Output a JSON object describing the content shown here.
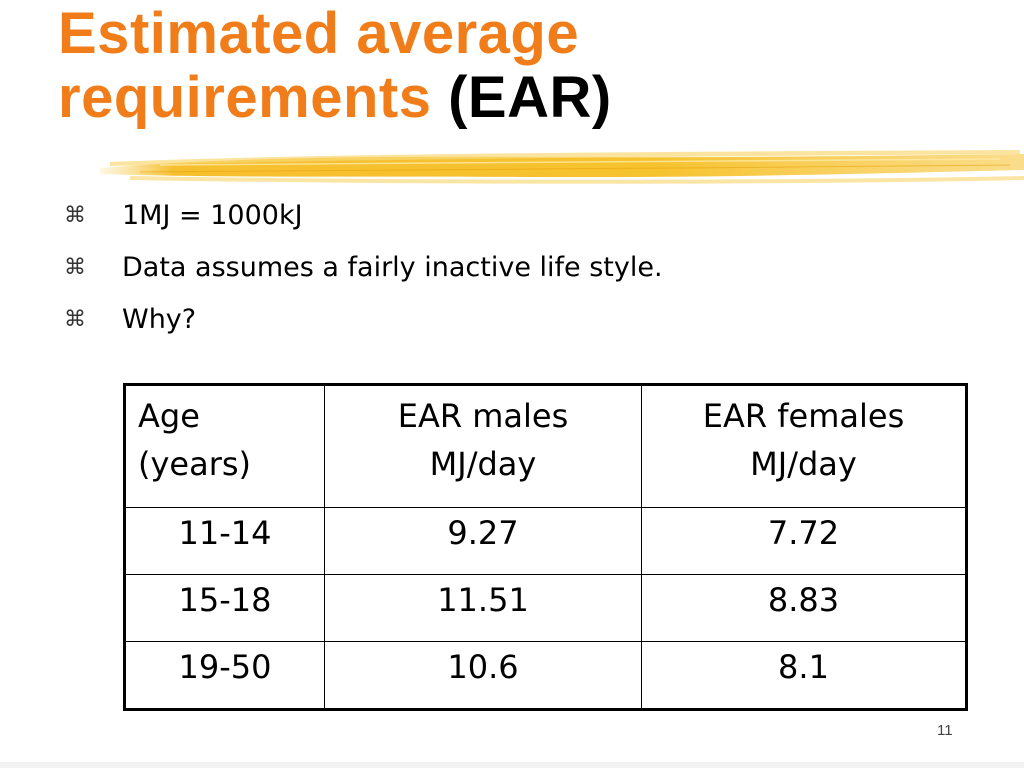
{
  "title": {
    "line1": "Estimated average",
    "line2": "requirements",
    "suffix": "(EAR)",
    "accent_color": "#f07d1a"
  },
  "bullets": [
    {
      "icon": "command-key-icon",
      "glyph": "⌘",
      "text": "1MJ = 1000kJ"
    },
    {
      "icon": "command-key-icon",
      "glyph": "⌘",
      "text": "Data assumes a fairly inactive life style."
    },
    {
      "icon": "command-key-icon",
      "glyph": "⌘",
      "text": "Why?"
    }
  ],
  "table": {
    "headers": {
      "age_line1": "Age",
      "age_line2": "(years)",
      "males_line1": "EAR males",
      "males_line2": "MJ/day",
      "females_line1": "EAR females",
      "females_line2": "MJ/day"
    },
    "rows": [
      {
        "age": "11-14",
        "males": "9.27",
        "females": "7.72"
      },
      {
        "age": "15-18",
        "males": "11.51",
        "females": "8.83"
      },
      {
        "age": "19-50",
        "males": "10.6",
        "females": "8.1"
      }
    ]
  },
  "page_number": "11"
}
